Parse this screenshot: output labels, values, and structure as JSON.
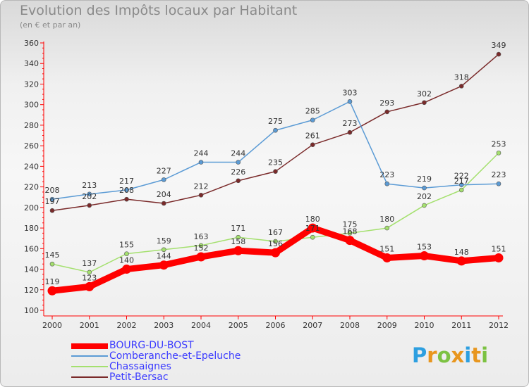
{
  "title": "Evolution des Impôts locaux par Habitant",
  "subtitle": "(en € et par an)",
  "logo": {
    "letters": [
      "P",
      "r",
      "o",
      "x",
      "i",
      "t",
      "i"
    ],
    "colors": [
      "#2d9fe0",
      "#e8961e",
      "#7cc242",
      "#e8961e",
      "#2d9fe0",
      "#e8961e",
      "#7cc242"
    ]
  },
  "chart_data": {
    "type": "line",
    "x": [
      2000,
      2001,
      2002,
      2003,
      2004,
      2005,
      2006,
      2007,
      2008,
      2009,
      2010,
      2011,
      2012
    ],
    "ylim": [
      100,
      360
    ],
    "yticks": [
      100,
      120,
      140,
      160,
      180,
      200,
      220,
      240,
      260,
      280,
      300,
      320,
      340,
      360
    ],
    "grid": false,
    "legend_position": "bottom",
    "series": [
      {
        "name": "BOURG-DU-BOST",
        "color": "#ff0000",
        "values": [
          119,
          123,
          140,
          144,
          152,
          158,
          156,
          180,
          168,
          151,
          153,
          148,
          151
        ]
      },
      {
        "name": "Comberanche-et-Epeluche",
        "color": "#5b9bd5",
        "values": [
          208,
          213,
          217,
          227,
          244,
          244,
          275,
          285,
          303,
          223,
          219,
          222,
          223
        ]
      },
      {
        "name": "Chassaignes",
        "color": "#a4e06e",
        "values": [
          145,
          137,
          155,
          159,
          163,
          171,
          167,
          171,
          175,
          180,
          202,
          217,
          253
        ]
      },
      {
        "name": "Petit-Bersac",
        "color": "#7a2a2a",
        "values": [
          197,
          202,
          208,
          204,
          212,
          226,
          235,
          261,
          273,
          293,
          302,
          318,
          349
        ]
      }
    ]
  }
}
